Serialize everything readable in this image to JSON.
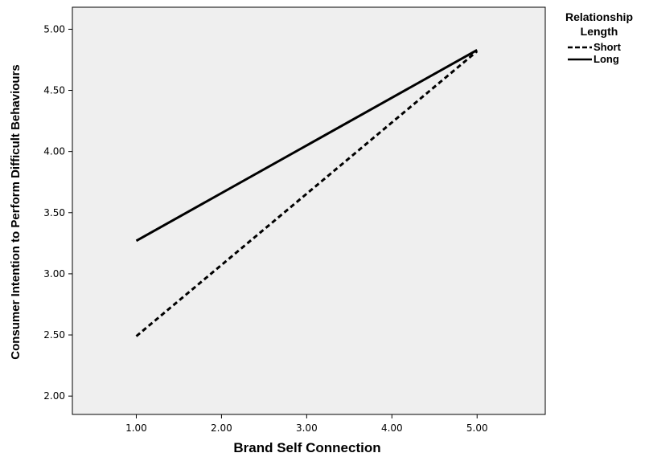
{
  "chart_data": {
    "type": "line",
    "title": "",
    "xlabel": "Brand Self Connection",
    "ylabel": "Consumer Intention to Perform Difficult Behaviours",
    "xlim": [
      0.25,
      5.8
    ],
    "ylim": [
      1.85,
      5.18
    ],
    "x_ticks": [
      1.0,
      2.0,
      3.0,
      4.0,
      5.0
    ],
    "x_tick_labels": [
      "1.00",
      "2.00",
      "3.00",
      "4.00",
      "5.00"
    ],
    "y_ticks": [
      2.0,
      2.5,
      3.0,
      3.5,
      4.0,
      4.5,
      5.0
    ],
    "y_tick_labels": [
      "2.00",
      "2.50",
      "3.00",
      "3.50",
      "4.00",
      "4.50",
      "5.00"
    ],
    "grid": false,
    "legend": {
      "title_lines": [
        "Relationship",
        "Length"
      ],
      "placement": "right"
    },
    "series": [
      {
        "name": "Short",
        "style": "dashed",
        "x": [
          1.0,
          5.0
        ],
        "y": [
          2.49,
          4.82
        ]
      },
      {
        "name": "Long",
        "style": "solid",
        "x": [
          1.0,
          5.0
        ],
        "y": [
          3.27,
          4.83
        ]
      }
    ],
    "colors": {
      "background": "#efefef",
      "line": "#000000"
    }
  }
}
